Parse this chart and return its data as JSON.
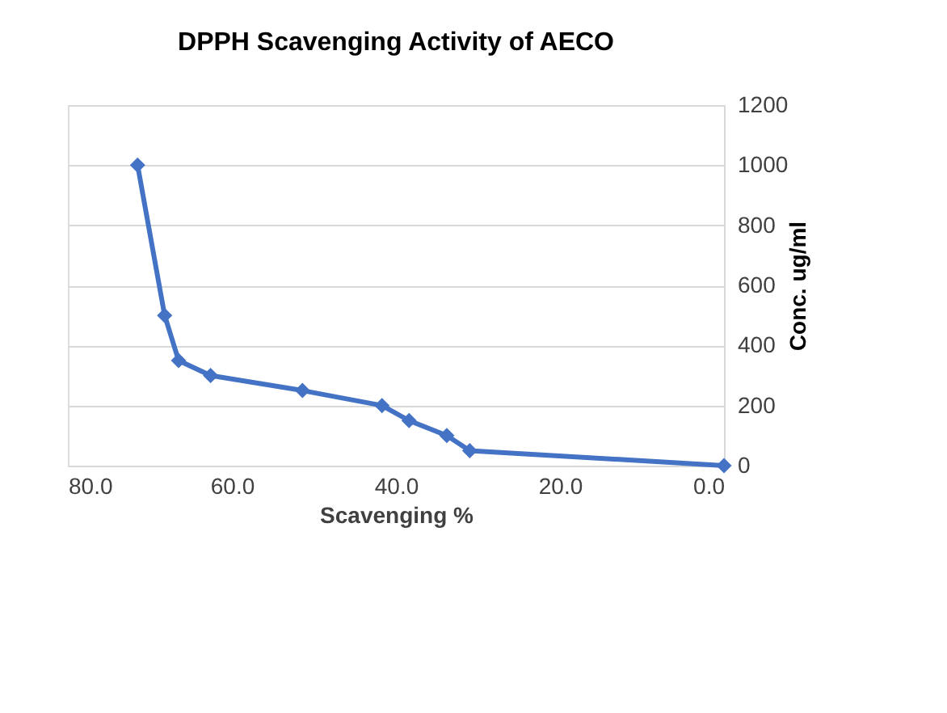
{
  "chart_data": {
    "type": "line",
    "title": "DPPH Scavenging Activity of AECO",
    "xlabel": "Scavenging %",
    "ylabel": "Conc. ug/ml",
    "x": [
      71.5,
      68.2,
      66.5,
      62.6,
      51.4,
      41.7,
      38.4,
      33.8,
      31.0,
      0
    ],
    "series": [
      {
        "color": "#4472c4",
        "values": [
          1000,
          500,
          350,
          300,
          250,
          200,
          150,
          100,
          50,
          0
        ]
      }
    ],
    "xlim": [
      80,
      0
    ],
    "xticks": [
      {
        "value": 80,
        "label": "80.0"
      },
      {
        "value": 60,
        "label": "60.0"
      },
      {
        "value": 40,
        "label": "40.0"
      },
      {
        "value": 20,
        "label": "20.0"
      },
      {
        "value": 0,
        "label": "0.0"
      }
    ],
    "ylim": [
      0,
      1200
    ],
    "yticks": [
      0,
      200,
      400,
      600,
      800,
      1000,
      1200
    ],
    "grid": "y",
    "marker": "diamond",
    "line_style": "solid"
  }
}
